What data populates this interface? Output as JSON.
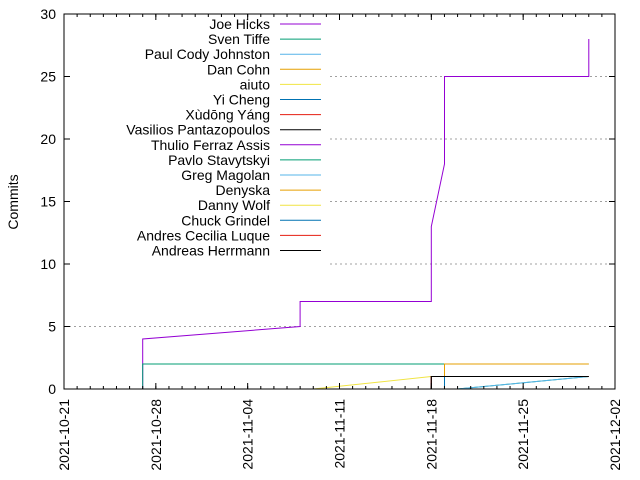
{
  "chart_data": {
    "type": "line",
    "title": "",
    "xlabel": "",
    "ylabel": "Commits",
    "ylim": [
      0,
      30
    ],
    "xlim": [
      "2021-10-21",
      "2021-12-02"
    ],
    "yticks": [
      0,
      5,
      10,
      15,
      20,
      25,
      30
    ],
    "xticks": [
      "2021-10-21",
      "2021-10-28",
      "2021-11-04",
      "2021-11-11",
      "2021-11-18",
      "2021-11-25",
      "2021-12-02"
    ],
    "grid": "y",
    "legend_position": "top-left",
    "series": [
      {
        "name": "Joe Hicks",
        "color": "#9400d3",
        "x": [
          "2021-10-27",
          "2021-10-27",
          "2021-10-27",
          "2021-10-27",
          "2021-11-08",
          "2021-11-08",
          "2021-11-18",
          "2021-11-18",
          "2021-11-18",
          "2021-11-18",
          "2021-11-18",
          "2021-11-19",
          "2021-11-19",
          "2021-11-19",
          "2021-11-19",
          "2021-11-30",
          "2021-11-30",
          "2021-11-30",
          "2021-11-30"
        ],
        "y": [
          0,
          1,
          3,
          4,
          5,
          7,
          7,
          8,
          10,
          12,
          13,
          18,
          18,
          20,
          25,
          25,
          26,
          27,
          28
        ]
      },
      {
        "name": "Sven Tiffe",
        "color": "#009e73",
        "x": [
          "2021-10-27",
          "2021-10-27",
          "2021-11-19"
        ],
        "y": [
          0,
          2,
          2
        ]
      },
      {
        "name": "Paul Cody Johnston",
        "color": "#56b4e9",
        "x": [
          "2021-11-19",
          "2021-11-19",
          "2021-11-30"
        ],
        "y": [
          0,
          2,
          2
        ]
      },
      {
        "name": "Dan Cohn",
        "color": "#e69f00",
        "x": [
          "2021-11-19",
          "2021-11-19",
          "2021-11-30"
        ],
        "y": [
          0,
          2,
          2
        ]
      },
      {
        "name": "aiuto",
        "color": "#f0e442",
        "x": [
          "2021-11-09",
          "2021-11-18",
          "2021-11-30"
        ],
        "y": [
          0,
          1,
          1
        ]
      },
      {
        "name": "Yi Cheng",
        "color": "#0072b2",
        "x": [
          "2021-11-18",
          "2021-11-18",
          "2021-11-30"
        ],
        "y": [
          0,
          1,
          1
        ]
      },
      {
        "name": "Xùdōng Yáng",
        "color": "#e51e10",
        "x": [
          "2021-11-18",
          "2021-11-18",
          "2021-11-30"
        ],
        "y": [
          0,
          1,
          1
        ]
      },
      {
        "name": "Vasilios Pantazopoulos",
        "color": "#000000",
        "x": [
          "2021-11-18",
          "2021-11-18",
          "2021-11-30"
        ],
        "y": [
          0,
          1,
          1
        ]
      },
      {
        "name": "Thulio Ferraz Assis",
        "color": "#9400d3",
        "x": [
          "2021-11-19",
          "2021-11-19",
          "2021-11-30"
        ],
        "y": [
          0,
          1,
          1
        ]
      },
      {
        "name": "Pavlo Stavytskyi",
        "color": "#009e73",
        "x": [
          "2021-11-20",
          "2021-11-30"
        ],
        "y": [
          0,
          1
        ]
      },
      {
        "name": "Greg Magolan",
        "color": "#56b4e9",
        "x": [
          "2021-11-20",
          "2021-11-30"
        ],
        "y": [
          0,
          1
        ]
      },
      {
        "name": "Denyska",
        "color": "#e69f00",
        "x": [
          "2021-11-19",
          "2021-11-19",
          "2021-11-30"
        ],
        "y": [
          0,
          1,
          1
        ]
      },
      {
        "name": "Danny Wolf",
        "color": "#f0e442",
        "x": [
          "2021-11-19",
          "2021-11-19",
          "2021-11-30"
        ],
        "y": [
          0,
          1,
          1
        ]
      },
      {
        "name": "Chuck Grindel",
        "color": "#0072b2",
        "x": [
          "2021-11-19",
          "2021-11-19",
          "2021-11-30"
        ],
        "y": [
          0,
          1,
          1
        ]
      },
      {
        "name": "Andres Cecilia Luque",
        "color": "#e51e10",
        "x": [
          "2021-11-18",
          "2021-11-18",
          "2021-11-30"
        ],
        "y": [
          0,
          1,
          1
        ]
      },
      {
        "name": "Andreas Herrmann",
        "color": "#000000",
        "x": [
          "2021-11-18",
          "2021-11-18",
          "2021-11-30"
        ],
        "y": [
          0,
          1,
          1
        ]
      }
    ]
  }
}
